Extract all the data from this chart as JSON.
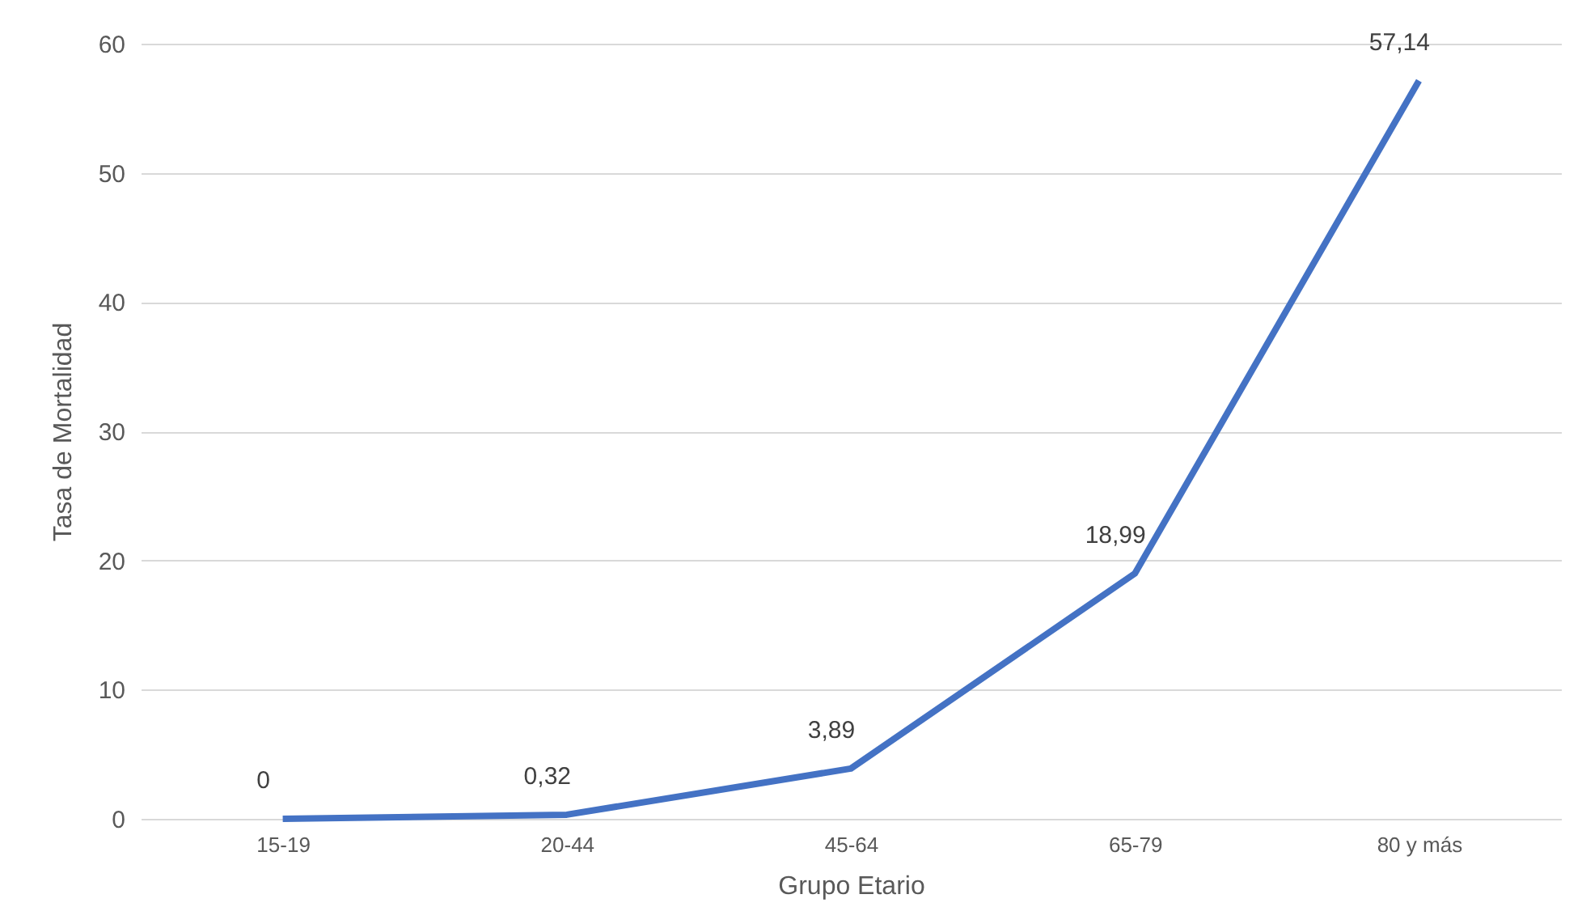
{
  "chart_data": {
    "type": "line",
    "xlabel": "Grupo Etario",
    "ylabel": "Tasa de Mortalidad",
    "categories": [
      "15-19",
      "20-44",
      "45-64",
      "65-79",
      "80 y más"
    ],
    "series": [
      {
        "color": "#4472c4",
        "values": [
          0,
          0.32,
          3.89,
          18.99,
          57.14
        ],
        "value_labels": [
          "0",
          "0,32",
          "3,89",
          "18,99",
          "57,14"
        ]
      }
    ],
    "ylim": [
      0,
      60
    ],
    "yticks": [
      0,
      10,
      20,
      30,
      40,
      50,
      60
    ],
    "grid": "y",
    "legend": false,
    "marker": "none",
    "line_style": "solid"
  }
}
